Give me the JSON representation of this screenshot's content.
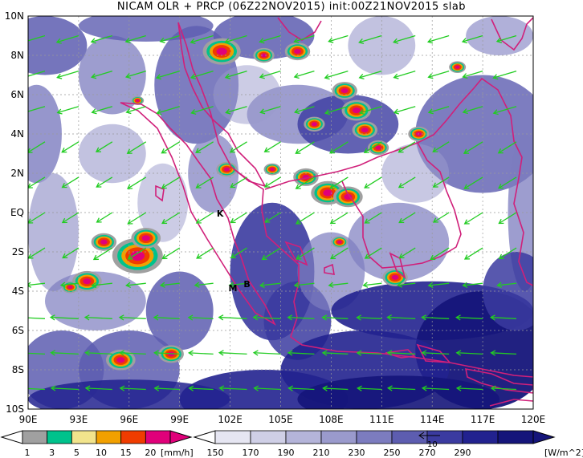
{
  "title": "NICAM OLR + PRCP (06Z22NOV2015) init:00Z21NOV2015 slab",
  "lat_labels": [
    "10N",
    "8N",
    "6N",
    "4N",
    "2N",
    "EQ",
    "2S",
    "4S",
    "6S",
    "8S",
    "10S"
  ],
  "lon_labels": [
    "90E",
    "93E",
    "96E",
    "99E",
    "102E",
    "105E",
    "108E",
    "111E",
    "114E",
    "117E",
    "120E"
  ],
  "markers": [
    {
      "label": "K",
      "lon": 101.2,
      "lat": -0.2
    },
    {
      "label": "M",
      "lon": 101.9,
      "lat": -4.0
    },
    {
      "label": "B",
      "lon": 102.8,
      "lat": -3.8
    }
  ],
  "vector_reference": "10",
  "precip_legend": {
    "levels": [
      "1",
      "3",
      "5",
      "10",
      "15",
      "20"
    ],
    "unit": "[mm/h]",
    "colors": [
      "#a0a0a0",
      "#00c28c",
      "#f2e48c",
      "#f2a000",
      "#f03c00",
      "#e0007a"
    ]
  },
  "olr_legend": {
    "levels": [
      "150",
      "170",
      "190",
      "210",
      "230",
      "250",
      "270",
      "290"
    ],
    "unit": "[W/m^2]",
    "colors": [
      "#ffffff",
      "#e6e6f2",
      "#cfcfe6",
      "#b4b4d9",
      "#9a9acc",
      "#7c7cbf",
      "#5d5db0",
      "#3b3ba0",
      "#22228f",
      "#15157a"
    ]
  },
  "colors": {
    "coast": "#d0207a",
    "vector": "#22cc22",
    "grid": "#999999"
  }
}
